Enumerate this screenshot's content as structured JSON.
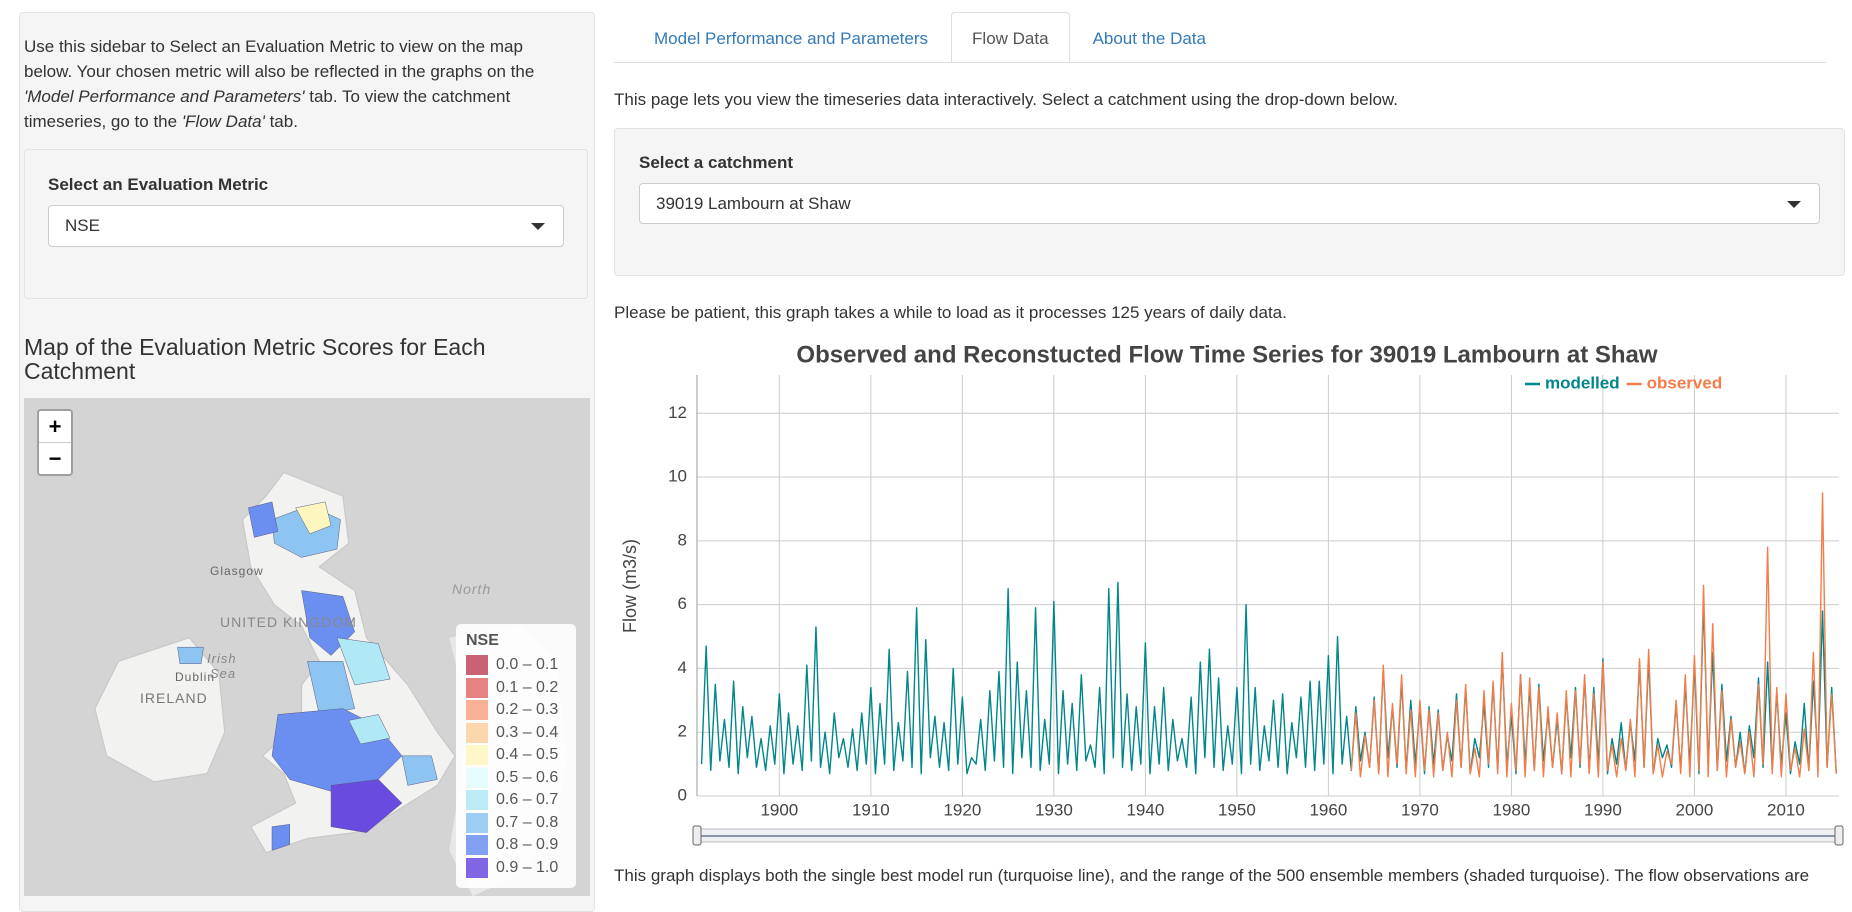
{
  "sidebar": {
    "intro": [
      "Use this sidebar to Select an Evaluation Metric to view on the map below. Your chosen metric will also be reflected in the graphs on the ",
      "'Model Performance and Parameters'",
      " tab. To view the catchment timeseries, go to the ",
      "'Flow Data'",
      " tab."
    ],
    "metric_label": "Select an Evaluation Metric",
    "metric_value": "NSE",
    "map_title": "Map of the Evaluation Metric Scores for Each Catchment",
    "zoom_in": "+",
    "zoom_out": "−",
    "map_labels": [
      "Glasgow",
      "UNITED KINGDOM",
      "Irish",
      "Sea",
      "Dublin",
      "IRELAND",
      "North"
    ],
    "legend": {
      "title": "NSE",
      "items": [
        {
          "label": "0.0 – 0.1",
          "color": "#c0485a"
        },
        {
          "label": "0.1 – 0.2",
          "color": "#e06b6b"
        },
        {
          "label": "0.2 – 0.3",
          "color": "#f4a385"
        },
        {
          "label": "0.3 – 0.4",
          "color": "#fbd09f"
        },
        {
          "label": "0.4 – 0.5",
          "color": "#fdf6bf"
        },
        {
          "label": "0.5 – 0.6",
          "color": "#e2fbfb"
        },
        {
          "label": "0.6 – 0.7",
          "color": "#b0e8f5"
        },
        {
          "label": "0.7 – 0.8",
          "color": "#8dc4f2"
        },
        {
          "label": "0.8 – 0.9",
          "color": "#6b8ff0"
        },
        {
          "label": "0.9 – 1.0",
          "color": "#6a4be0"
        }
      ]
    }
  },
  "tabs": [
    "Model Performance and Parameters",
    "Flow Data",
    "About the Data"
  ],
  "active_tab": 1,
  "intro": "This page lets you view the timeseries data interactively. Select a catchment using the drop-down below.",
  "catchment_label": "Select a catchment",
  "catchment_value": "39019 Lambourn at Shaw",
  "note": "Please be patient, this graph takes a while to load as it processes 125 years of daily data.",
  "caption": "This graph displays both the single best model run (turquoise line), and the range of the 500 ensemble members (shaded turquoise). The flow observations are",
  "chart_data": {
    "type": "line",
    "title": "Observed and Reconstucted Flow Time Series for 39019 Lambourn at Shaw",
    "y_label": "Flow (m3/s)",
    "xlim": [
      1891,
      2015.8
    ],
    "ylim": [
      0,
      13.2
    ],
    "xticks": [
      1900,
      1910,
      1920,
      1930,
      1940,
      1950,
      1960,
      1970,
      1980,
      1990,
      2000,
      2010
    ],
    "yticks": [
      0,
      2,
      4,
      6,
      8,
      10,
      12
    ],
    "grid": true,
    "series": [
      {
        "name": "modelled",
        "color": "#00868b",
        "x": [
          1891.5,
          1892,
          1892.5,
          1893,
          1893.5,
          1894,
          1894.5,
          1895,
          1895.5,
          1896,
          1896.5,
          1897,
          1897.5,
          1898,
          1898.5,
          1899,
          1899.5,
          1900,
          1900.5,
          1901,
          1901.5,
          1902,
          1902.5,
          1903,
          1903.5,
          1904,
          1904.5,
          1905,
          1905.5,
          1906,
          1906.5,
          1907,
          1907.5,
          1908,
          1908.5,
          1909,
          1909.5,
          1910,
          1910.5,
          1911,
          1911.5,
          1912,
          1912.5,
          1913,
          1913.5,
          1914,
          1914.5,
          1915,
          1915.5,
          1916,
          1916.5,
          1917,
          1917.5,
          1918,
          1918.5,
          1919,
          1919.5,
          1920,
          1920.5,
          1921,
          1921.5,
          1922,
          1922.5,
          1923,
          1923.5,
          1924,
          1924.5,
          1925,
          1925.5,
          1926,
          1926.5,
          1927,
          1927.5,
          1928,
          1928.5,
          1929,
          1929.5,
          1930,
          1930.5,
          1931,
          1931.5,
          1932,
          1932.5,
          1933,
          1933.5,
          1934,
          1934.5,
          1935,
          1935.5,
          1936,
          1936.5,
          1937,
          1937.5,
          1938,
          1938.5,
          1939,
          1939.5,
          1940,
          1940.5,
          1941,
          1941.5,
          1942,
          1942.5,
          1943,
          1943.5,
          1944,
          1944.5,
          1945,
          1945.5,
          1946,
          1946.5,
          1947,
          1947.5,
          1948,
          1948.5,
          1949,
          1949.5,
          1950,
          1950.5,
          1951,
          1951.5,
          1952,
          1952.5,
          1953,
          1953.5,
          1954,
          1954.5,
          1955,
          1955.5,
          1956,
          1956.5,
          1957,
          1957.5,
          1958,
          1958.5,
          1959,
          1959.5,
          1960,
          1960.5,
          1961,
          1961.5,
          1962,
          1962.5,
          1963,
          1963.5,
          1964,
          1964.5,
          1965,
          1965.5,
          1966,
          1966.5,
          1967,
          1967.5,
          1968,
          1968.5,
          1969,
          1969.5,
          1970,
          1970.5,
          1971,
          1971.5,
          1972,
          1972.5,
          1973,
          1973.5,
          1974,
          1974.5,
          1975,
          1975.5,
          1976,
          1976.5,
          1977,
          1977.5,
          1978,
          1978.5,
          1979,
          1979.5,
          1980,
          1980.5,
          1981,
          1981.5,
          1982,
          1982.5,
          1983,
          1983.5,
          1984,
          1984.5,
          1985,
          1985.5,
          1986,
          1986.5,
          1987,
          1987.5,
          1988,
          1988.5,
          1989,
          1989.5,
          1990,
          1990.5,
          1991,
          1991.5,
          1992,
          1992.5,
          1993,
          1993.5,
          1994,
          1994.5,
          1995,
          1995.5,
          1996,
          1996.5,
          1997,
          1997.5,
          1998,
          1998.5,
          1999,
          1999.5,
          2000,
          2000.5,
          2001,
          2001.5,
          2002,
          2002.5,
          2003,
          2003.5,
          2004,
          2004.5,
          2005,
          2005.5,
          2006,
          2006.5,
          2007,
          2007.5,
          2008,
          2008.5,
          2009,
          2009.5,
          2010,
          2010.5,
          2011,
          2011.5,
          2012,
          2012.5,
          2013,
          2013.5,
          2014,
          2014.5,
          2015,
          2015.5
        ],
        "values": [
          1.0,
          4.7,
          0.8,
          3.5,
          1.1,
          2.4,
          0.9,
          3.6,
          0.7,
          2.8,
          1.2,
          2.5,
          0.9,
          1.8,
          0.8,
          2.2,
          1.0,
          3.2,
          0.7,
          2.6,
          1.0,
          2.2,
          0.8,
          4.1,
          1.1,
          5.3,
          0.9,
          2.0,
          0.7,
          2.6,
          1.2,
          1.8,
          0.9,
          2.1,
          0.8,
          2.6,
          1.0,
          3.4,
          0.7,
          2.9,
          1.0,
          4.6,
          0.8,
          2.3,
          1.1,
          3.9,
          0.9,
          5.9,
          0.7,
          4.9,
          1.2,
          2.5,
          0.9,
          2.3,
          0.8,
          4.0,
          1.0,
          3.1,
          0.7,
          1.2,
          1.0,
          2.4,
          0.8,
          3.3,
          1.1,
          3.9,
          0.9,
          6.5,
          0.7,
          4.2,
          1.2,
          3.3,
          0.9,
          5.9,
          0.8,
          2.4,
          1.0,
          6.1,
          0.7,
          3.3,
          1.0,
          2.9,
          0.8,
          3.8,
          1.1,
          1.6,
          0.9,
          3.4,
          0.7,
          6.5,
          1.2,
          6.7,
          0.9,
          3.2,
          0.8,
          2.8,
          1.0,
          4.8,
          0.7,
          2.8,
          1.0,
          3.4,
          0.8,
          2.4,
          1.1,
          1.8,
          0.9,
          3.1,
          0.7,
          4.2,
          1.2,
          4.6,
          0.9,
          3.7,
          0.8,
          2.2,
          1.0,
          3.4,
          0.7,
          6.0,
          1.0,
          3.4,
          0.8,
          2.2,
          1.1,
          3.0,
          0.9,
          3.2,
          0.7,
          2.3,
          1.2,
          3.1,
          0.9,
          3.6,
          0.8,
          3.6,
          1.0,
          4.4,
          0.7,
          5.0,
          1.0,
          2.5,
          0.8,
          2.8,
          1.1,
          2.0,
          0.9,
          3.1,
          0.7,
          4.0,
          1.2,
          2.8,
          0.9,
          3.6,
          0.8,
          3.0,
          1.0,
          2.8,
          0.7,
          2.8,
          1.0,
          2.7,
          0.8,
          1.9,
          1.1,
          3.2,
          0.9,
          3.4,
          0.7,
          1.8,
          1.2,
          2.9,
          0.9,
          3.5,
          0.8,
          4.3,
          1.0,
          2.5,
          0.7,
          3.8,
          1.0,
          3.4,
          0.8,
          3.5,
          1.1,
          2.6,
          0.9,
          2.4,
          0.7,
          3.1,
          1.2,
          3.4,
          0.9,
          3.7,
          0.8,
          3.4,
          1.0,
          4.3,
          0.7,
          1.8,
          1.0,
          2.3,
          0.8,
          2.3,
          1.1,
          4.2,
          0.9,
          4.3,
          0.7,
          1.8,
          1.2,
          1.6,
          0.9,
          2.9,
          0.8,
          3.5,
          1.0,
          4.1,
          0.7,
          6.1,
          1.0,
          4.5,
          0.8,
          3.5,
          1.1,
          2.5,
          0.9,
          2.0,
          0.7,
          2.2,
          1.2,
          3.7,
          0.9,
          4.2,
          0.8,
          3.2,
          1.0,
          2.6,
          0.7,
          1.7,
          1.0,
          2.9,
          0.8,
          3.6,
          1.1,
          5.8,
          0.9,
          3.4,
          0.7
        ]
      },
      {
        "name": "observed",
        "color": "#f47c48",
        "x": [
          1962.5,
          1963,
          1963.5,
          1964,
          1964.5,
          1965,
          1965.5,
          1966,
          1966.5,
          1967,
          1967.5,
          1968,
          1968.5,
          1969,
          1969.5,
          1970,
          1970.5,
          1971,
          1971.5,
          1972,
          1972.5,
          1973,
          1973.5,
          1974,
          1974.5,
          1975,
          1975.5,
          1976,
          1976.5,
          1977,
          1977.5,
          1978,
          1978.5,
          1979,
          1979.5,
          1980,
          1980.5,
          1981,
          1981.5,
          1982,
          1982.5,
          1983,
          1983.5,
          1984,
          1984.5,
          1985,
          1985.5,
          1986,
          1986.5,
          1987,
          1987.5,
          1988,
          1988.5,
          1989,
          1989.5,
          1990,
          1990.5,
          1991,
          1991.5,
          1992,
          1992.5,
          1993,
          1993.5,
          1994,
          1994.5,
          1995,
          1995.5,
          1996,
          1996.5,
          1997,
          1997.5,
          1998,
          1998.5,
          1999,
          1999.5,
          2000,
          2000.5,
          2001,
          2001.5,
          2002,
          2002.5,
          2003,
          2003.5,
          2004,
          2004.5,
          2005,
          2005.5,
          2006,
          2006.5,
          2007,
          2007.5,
          2008,
          2008.5,
          2009,
          2009.5,
          2010,
          2010.5,
          2011,
          2011.5,
          2012,
          2012.5,
          2013,
          2013.5,
          2014,
          2014.5,
          2015,
          2015.5
        ],
        "values": [
          0.8,
          2.6,
          0.6,
          1.9,
          0.9,
          3.0,
          0.7,
          4.1,
          0.6,
          2.9,
          1.0,
          3.8,
          0.7,
          2.7,
          0.6,
          3.0,
          0.8,
          2.7,
          0.6,
          2.6,
          0.8,
          2.0,
          0.6,
          3.0,
          0.9,
          3.5,
          0.7,
          1.5,
          0.6,
          3.3,
          1.0,
          3.6,
          0.7,
          4.5,
          0.6,
          2.9,
          0.8,
          3.8,
          0.6,
          3.7,
          0.8,
          3.4,
          0.6,
          2.8,
          0.9,
          2.6,
          0.7,
          3.3,
          0.6,
          3.3,
          1.0,
          3.8,
          0.7,
          3.2,
          0.6,
          4.2,
          0.8,
          1.6,
          0.6,
          1.8,
          0.8,
          2.4,
          0.6,
          4.3,
          0.9,
          4.6,
          0.7,
          1.6,
          0.6,
          1.4,
          1.0,
          3.0,
          0.7,
          3.8,
          0.6,
          4.4,
          0.8,
          6.6,
          0.6,
          5.4,
          0.8,
          3.3,
          0.6,
          2.4,
          0.9,
          1.7,
          0.7,
          2.0,
          0.6,
          3.5,
          1.0,
          7.8,
          0.7,
          3.4,
          0.6,
          3.2,
          0.8,
          1.5,
          0.6,
          2.1,
          0.8,
          4.5,
          0.6,
          9.5,
          0.9,
          3.2,
          0.7
        ]
      }
    ]
  }
}
